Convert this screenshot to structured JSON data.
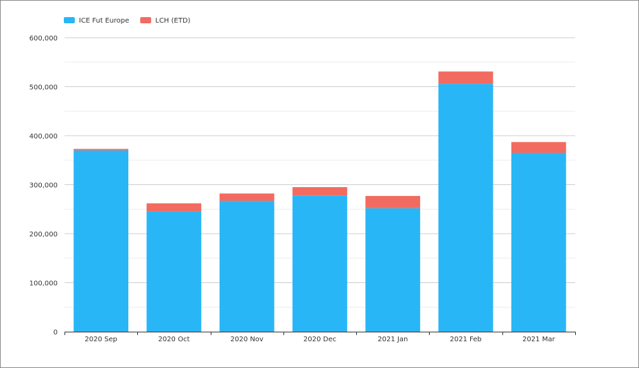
{
  "chart_data": {
    "type": "bar",
    "stacked": true,
    "categories": [
      "2020 Sep",
      "2020 Oct",
      "2020 Nov",
      "2020 Dec",
      "2021 Jan",
      "2021 Feb",
      "2021 Mar"
    ],
    "series": [
      {
        "name": "ICE Fut Europe",
        "color": "#29b6f6",
        "values": [
          370000,
          246000,
          267000,
          278000,
          252000,
          506000,
          365000
        ]
      },
      {
        "name": "LCH (ETD)",
        "color": "#f26b60",
        "values": [
          3000,
          16000,
          15000,
          17000,
          25000,
          25000,
          22000
        ]
      }
    ],
    "ylim": [
      0,
      600000
    ],
    "yticks": [
      0,
      100000,
      200000,
      300000,
      400000,
      500000,
      600000
    ],
    "ytick_labels": [
      "0",
      "100,000",
      "200,000",
      "300,000",
      "400,000",
      "500,000",
      "600,000"
    ],
    "grid": true,
    "legend_position": "top-left",
    "xlabel": "",
    "ylabel": ""
  }
}
